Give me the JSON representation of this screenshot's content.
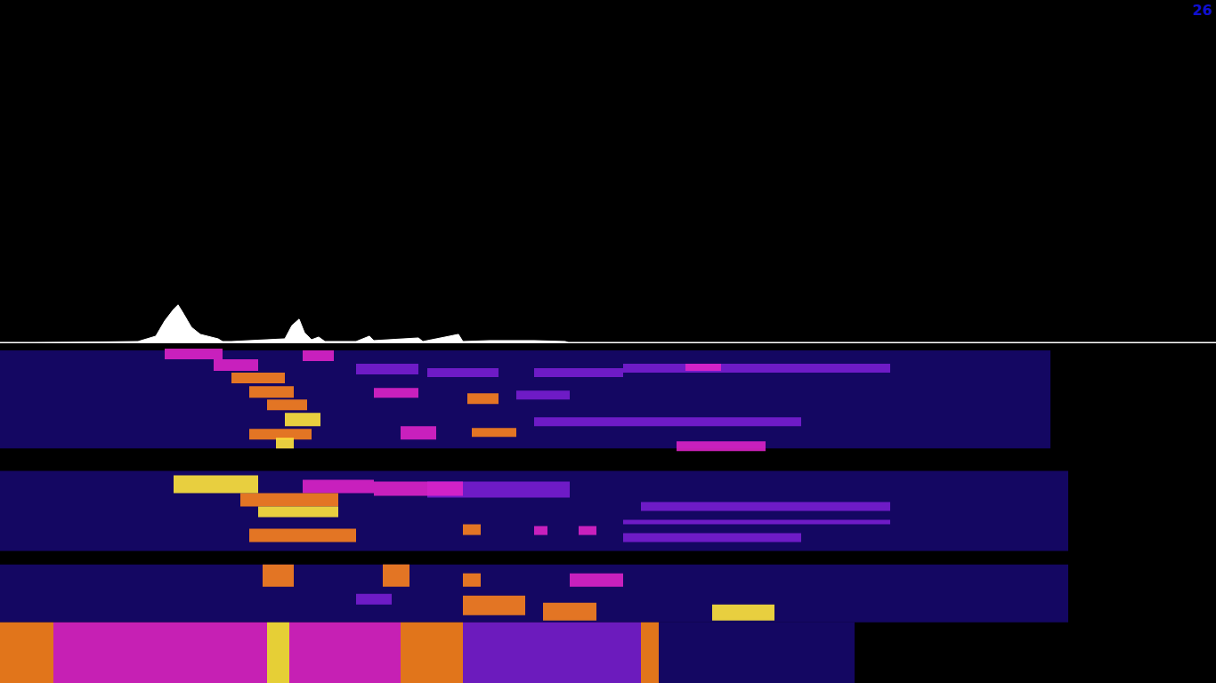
{
  "chart_data": [
    {
      "type": "area",
      "annotations": [
        "26"
      ],
      "tick_labels": false,
      "color": "#ffffff",
      "xlim": [
        0,
        1366
      ],
      "ylim": [
        0,
        384
      ],
      "x": [
        0,
        155,
        175,
        185,
        195,
        200,
        205,
        215,
        225,
        245,
        250,
        260,
        280,
        320,
        328,
        336,
        342,
        350,
        358,
        365,
        400,
        415,
        420,
        470,
        475,
        515,
        520,
        550,
        600,
        635,
        640,
        1366
      ],
      "values": [
        0,
        2,
        8,
        25,
        38,
        43,
        35,
        18,
        10,
        5,
        2,
        2,
        3,
        5,
        20,
        27,
        12,
        4,
        7,
        2,
        2,
        8,
        3,
        6,
        2,
        10,
        2,
        3,
        3,
        2,
        0,
        0
      ]
    },
    {
      "type": "heatmap",
      "tick_labels": false,
      "xlim": [
        0,
        1366
      ],
      "ylim": [
        387,
        768
      ],
      "zlim": [
        0,
        5
      ],
      "cells": [
        [
          0,
          1180,
          395,
          505,
          1
        ],
        [
          0,
          1200,
          530,
          620,
          1
        ],
        [
          0,
          1200,
          635,
          700,
          1
        ],
        [
          740,
          960,
          700,
          768,
          1
        ],
        [
          520,
          720,
          700,
          768,
          2
        ],
        [
          700,
          1000,
          410,
          420,
          2
        ],
        [
          600,
          900,
          470,
          480,
          2
        ],
        [
          580,
          640,
          440,
          450,
          2
        ],
        [
          400,
          470,
          410,
          422,
          2
        ],
        [
          480,
          560,
          415,
          425,
          2
        ],
        [
          600,
          700,
          415,
          425,
          2
        ],
        [
          480,
          640,
          542,
          560,
          2
        ],
        [
          700,
          900,
          600,
          610,
          2
        ],
        [
          720,
          1000,
          565,
          575,
          2
        ],
        [
          700,
          1000,
          585,
          590,
          2
        ],
        [
          400,
          440,
          668,
          680,
          2
        ],
        [
          60,
          300,
          700,
          768,
          3
        ],
        [
          325,
          450,
          700,
          768,
          3
        ],
        [
          185,
          250,
          393,
          405,
          3
        ],
        [
          340,
          375,
          395,
          407,
          3
        ],
        [
          420,
          470,
          437,
          448,
          3
        ],
        [
          450,
          490,
          480,
          495,
          3
        ],
        [
          770,
          810,
          410,
          418,
          3
        ],
        [
          760,
          860,
          497,
          508,
          3
        ],
        [
          340,
          420,
          540,
          555,
          3
        ],
        [
          420,
          520,
          542,
          558,
          3
        ],
        [
          600,
          615,
          592,
          602,
          3
        ],
        [
          650,
          670,
          592,
          602,
          3
        ],
        [
          640,
          700,
          645,
          660,
          3
        ],
        [
          0,
          60,
          700,
          768,
          4
        ],
        [
          450,
          520,
          700,
          768,
          4
        ],
        [
          720,
          740,
          700,
          768,
          4
        ],
        [
          240,
          290,
          405,
          418,
          3
        ],
        [
          260,
          320,
          420,
          432,
          4
        ],
        [
          280,
          330,
          435,
          448,
          4
        ],
        [
          300,
          345,
          450,
          462,
          4
        ],
        [
          280,
          350,
          483,
          495,
          4
        ],
        [
          525,
          560,
          443,
          455,
          4
        ],
        [
          530,
          580,
          482,
          492,
          4
        ],
        [
          270,
          380,
          555,
          570,
          4
        ],
        [
          280,
          400,
          595,
          610,
          4
        ],
        [
          520,
          540,
          590,
          602,
          4
        ],
        [
          295,
          330,
          635,
          660,
          4
        ],
        [
          430,
          460,
          635,
          660,
          4
        ],
        [
          520,
          540,
          645,
          660,
          4
        ],
        [
          520,
          590,
          670,
          692,
          4
        ],
        [
          610,
          670,
          678,
          698,
          4
        ],
        [
          320,
          360,
          465,
          480,
          5
        ],
        [
          310,
          330,
          493,
          505,
          5
        ],
        [
          195,
          290,
          535,
          555,
          5
        ],
        [
          290,
          380,
          570,
          582,
          5
        ],
        [
          800,
          870,
          680,
          698,
          5
        ],
        [
          300,
          325,
          700,
          768,
          5
        ]
      ]
    }
  ]
}
